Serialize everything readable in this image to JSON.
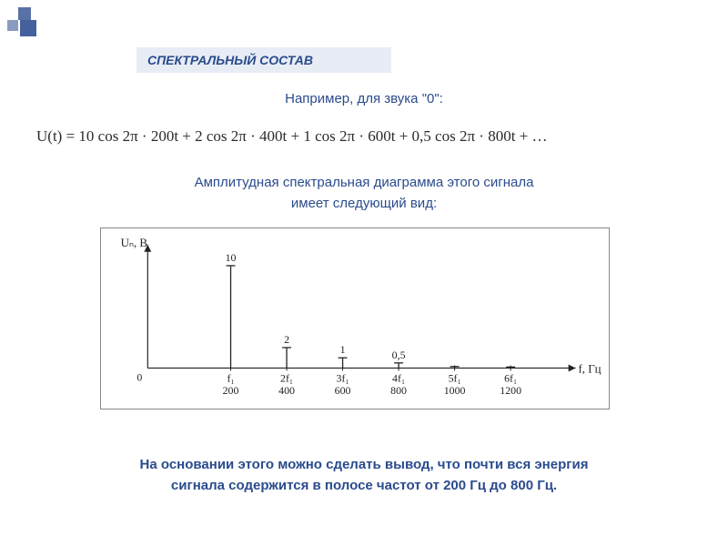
{
  "header": {
    "title": "СПЕКТРАЛЬНЫЙ СОСТАВ"
  },
  "example_line": "Например, для звука \"0\":",
  "formula": "U(t) = 10 cos 2π · 200t + 2 cos 2π · 400t + 1 cos 2π · 600t + 0,5 cos 2π · 800t + …",
  "subtitle_line1": "Амплитудная спектральная диаграмма этого сигнала",
  "subtitle_line2": "имеет следующий вид:",
  "chart": {
    "type": "stem",
    "y_label": "Uₙ, В",
    "x_label": "f, Гц",
    "origin_label": "0",
    "axis_color": "#222222",
    "stem_color": "#222222",
    "background_color": "#ffffff",
    "border_color": "#888888",
    "xlim": [
      0,
      1400
    ],
    "ylim": [
      0,
      11
    ],
    "points": [
      {
        "tick_top": "f₁",
        "tick_bottom": "200",
        "value": 10,
        "label": "10"
      },
      {
        "tick_top": "2f₁",
        "tick_bottom": "400",
        "value": 2,
        "label": "2"
      },
      {
        "tick_top": "3f₁",
        "tick_bottom": "600",
        "value": 1,
        "label": "1"
      },
      {
        "tick_top": "4f₁",
        "tick_bottom": "800",
        "value": 0.5,
        "label": "0,5"
      },
      {
        "tick_top": "5f₁",
        "tick_bottom": "1000",
        "value": 0.15,
        "label": ""
      },
      {
        "tick_top": "6f₁",
        "tick_bottom": "1200",
        "value": 0.1,
        "label": ""
      }
    ]
  },
  "conclusion_line1": "На основании этого можно сделать вывод, что почти вся энергия",
  "conclusion_line2": "сигнала содержится в полосе частот от 200 Гц до 800 Гц.",
  "colors": {
    "accent": "#2a4b8d",
    "banner_bg": "#e8ecf5",
    "corner_square": "#3b5998",
    "page_bg": "#ffffff"
  }
}
